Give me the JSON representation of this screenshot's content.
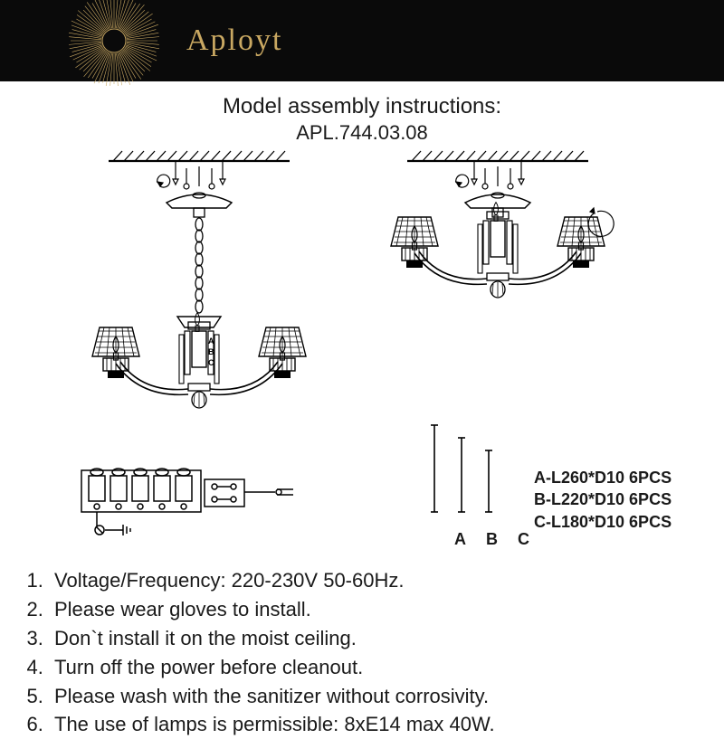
{
  "brand": "Aployt",
  "title": "Model assembly instructions:",
  "model": "APL.744.03.08",
  "rods": {
    "a": "A-L260*D10  6PCS",
    "b": "B-L220*D10  6PCS",
    "c": "C-L180*D10  6PCS",
    "label_a": "A",
    "label_b": "B",
    "label_c": "C"
  },
  "instructions": [
    "Voltage/Frequency: 220-230V 50-60Hz.",
    "Please wear gloves to install.",
    "Don`t install it on the moist ceiling.",
    "Turn off the power before cleanout.",
    "Please wash with the sanitizer without corrosivity.",
    "The use of lamps is permissible: 8xE14 max 40W."
  ],
  "colors": {
    "header_bg": "#0a0a0a",
    "brand_gold": "#c9a862",
    "text": "#1a1a1a",
    "line": "#000000"
  }
}
